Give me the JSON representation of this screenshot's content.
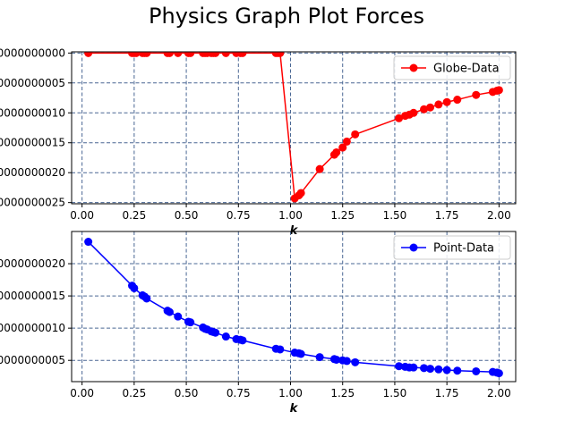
{
  "figure": {
    "title": "Physics Graph Plot Forces"
  },
  "chart_data": [
    {
      "type": "line",
      "xlabel": "k",
      "ylabel": "",
      "xlim": [
        -0.05,
        2.08
      ],
      "ylim": [
        -2.52e-08,
        2e-10
      ],
      "x_ticks": [
        0.0,
        0.25,
        0.5,
        0.75,
        1.0,
        1.25,
        1.5,
        1.75,
        2.0
      ],
      "x_tick_labels": [
        "0.00",
        "0.25",
        "0.50",
        "0.75",
        "1.00",
        "1.25",
        "1.50",
        "1.75",
        "2.00"
      ],
      "y_ticks": [
        0.0,
        -5e-09,
        -1e-08,
        -1.5e-08,
        -2e-08,
        -2.5e-08
      ],
      "y_tick_labels": [
        "0000000000",
        "0000000005",
        "0000000010",
        "0000000015",
        "0000000020",
        "0000000025"
      ],
      "grid": true,
      "legend": "top-right",
      "series": [
        {
          "name": "Globe-Data",
          "color": "#ff0000",
          "marker": "circle",
          "x": [
            0.03,
            0.24,
            0.25,
            0.26,
            0.29,
            0.3,
            0.31,
            0.41,
            0.42,
            0.46,
            0.51,
            0.52,
            0.58,
            0.59,
            0.6,
            0.62,
            0.63,
            0.64,
            0.69,
            0.74,
            0.76,
            0.77,
            0.93,
            0.94,
            0.95,
            1.02,
            1.04,
            1.05,
            1.14,
            1.21,
            1.22,
            1.25,
            1.27,
            1.31,
            1.52,
            1.55,
            1.57,
            1.59,
            1.64,
            1.67,
            1.71,
            1.75,
            1.8,
            1.89,
            1.97,
            1.99,
            2.0
          ],
          "values": [
            0.0,
            0.0,
            0.0,
            0.0,
            0.0,
            0.0,
            0.0,
            0.0,
            0.0,
            0.0,
            0.0,
            0.0,
            0.0,
            0.0,
            0.0,
            0.0,
            0.0,
            0.0,
            0.0,
            0.0,
            0.0,
            0.0,
            0.0,
            0.0,
            0.0,
            -2.43e-08,
            -2.38e-08,
            -2.34e-08,
            -1.94e-08,
            -1.7e-08,
            -1.66e-08,
            -1.58e-08,
            -1.48e-08,
            -1.36e-08,
            -1.09e-08,
            -1.05e-08,
            -1.03e-08,
            -1e-08,
            -9.4e-09,
            -9.1e-09,
            -8.6e-09,
            -8.2e-09,
            -7.8e-09,
            -7e-09,
            -6.5e-09,
            -6.3e-09,
            -6.2e-09
          ]
        }
      ]
    },
    {
      "type": "line",
      "xlabel": "k",
      "ylabel": "",
      "xlim": [
        -0.05,
        2.08
      ],
      "ylim": [
        1.7e-09,
        2.5e-08
      ],
      "x_ticks": [
        0.0,
        0.25,
        0.5,
        0.75,
        1.0,
        1.25,
        1.5,
        1.75,
        2.0
      ],
      "x_tick_labels": [
        "0.00",
        "0.25",
        "0.50",
        "0.75",
        "1.00",
        "1.25",
        "1.50",
        "1.75",
        "2.00"
      ],
      "y_ticks": [
        5e-09,
        1e-08,
        1.5e-08,
        2e-08
      ],
      "y_tick_labels": [
        "0000000005",
        "0000000010",
        "0000000015",
        "0000000020"
      ],
      "grid": true,
      "legend": "top-right",
      "series": [
        {
          "name": "Point-Data",
          "color": "#0000ff",
          "marker": "circle",
          "x": [
            0.03,
            0.24,
            0.25,
            0.29,
            0.3,
            0.31,
            0.41,
            0.42,
            0.46,
            0.51,
            0.52,
            0.58,
            0.59,
            0.6,
            0.62,
            0.63,
            0.64,
            0.69,
            0.74,
            0.76,
            0.77,
            0.93,
            0.95,
            1.02,
            1.04,
            1.05,
            1.14,
            1.21,
            1.22,
            1.25,
            1.27,
            1.31,
            1.52,
            1.55,
            1.57,
            1.59,
            1.64,
            1.67,
            1.71,
            1.75,
            1.8,
            1.89,
            1.97,
            1.99,
            2.0
          ],
          "values": [
            2.34e-08,
            1.66e-08,
            1.62e-08,
            1.51e-08,
            1.49e-08,
            1.46e-08,
            1.27e-08,
            1.25e-08,
            1.18e-08,
            1.1e-08,
            1.09e-08,
            1.01e-08,
            9.9e-09,
            9.8e-09,
            9.5e-09,
            9.4e-09,
            9.3e-09,
            8.7e-09,
            8.3e-09,
            8.2e-09,
            8.1e-09,
            6.8e-09,
            6.7e-09,
            6.2e-09,
            6.1e-09,
            6e-09,
            5.5e-09,
            5.2e-09,
            5.1e-09,
            5e-09,
            4.9e-09,
            4.7e-09,
            4.1e-09,
            4e-09,
            3.9e-09,
            3.9e-09,
            3.8e-09,
            3.7e-09,
            3.6e-09,
            3.5e-09,
            3.4e-09,
            3.3e-09,
            3.2e-09,
            3.1e-09,
            3e-09
          ]
        }
      ]
    }
  ]
}
